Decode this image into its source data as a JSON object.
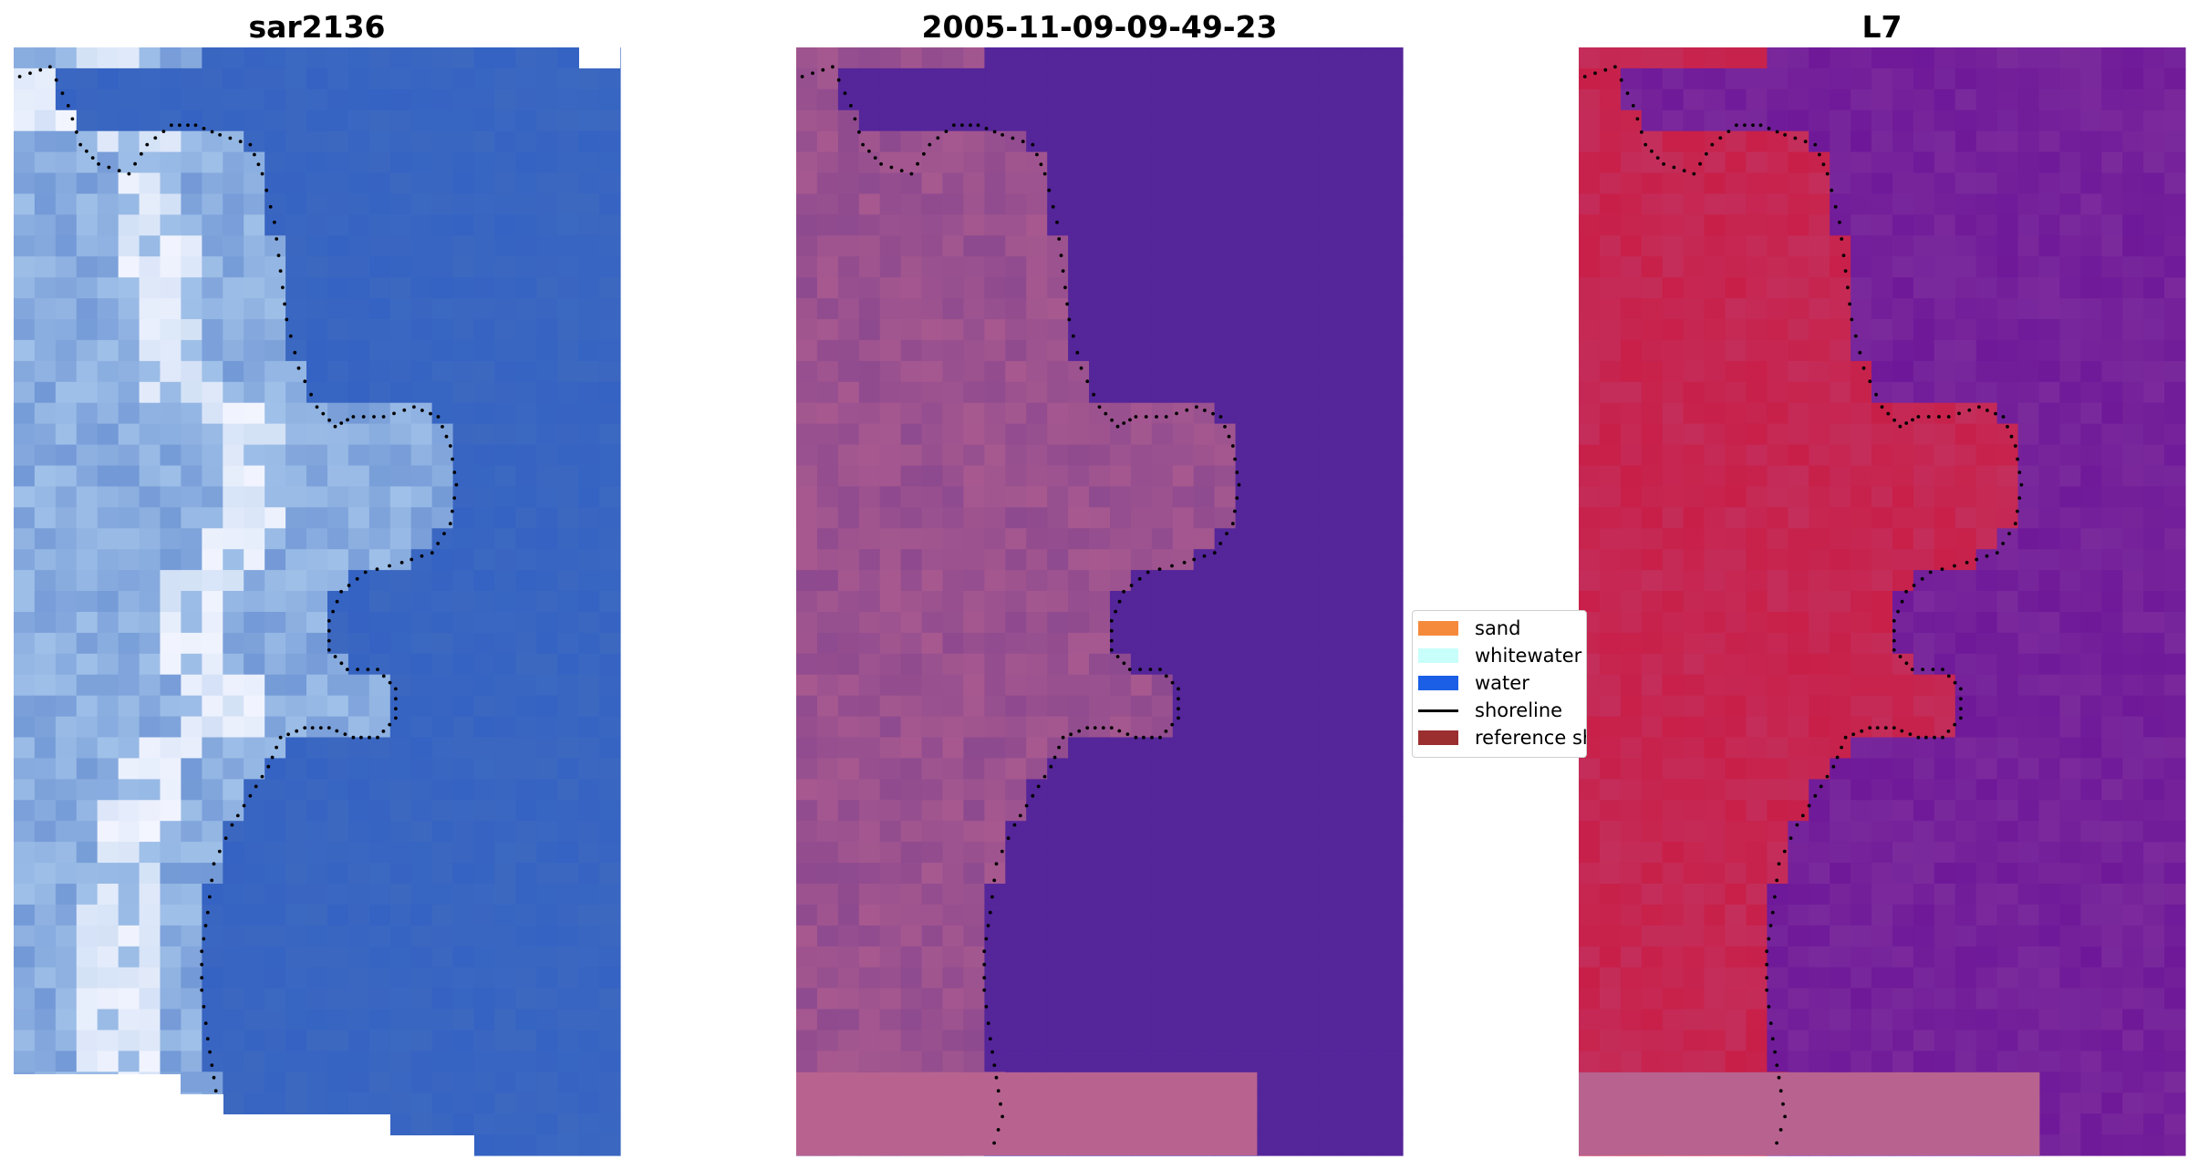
{
  "panels": [
    {
      "title": "sar2136",
      "name": "rgb-image-panel"
    },
    {
      "title": "2005-11-09-09-49-23",
      "name": "classified-image-panel"
    },
    {
      "title": "L7",
      "name": "index-image-panel"
    }
  ],
  "legend": {
    "items": [
      {
        "label": "sand",
        "color": "#f58a3c",
        "kind": "patch"
      },
      {
        "label": "whitewater",
        "color": "#c8fffa",
        "kind": "patch"
      },
      {
        "label": "water",
        "color": "#1a5fe6",
        "kind": "patch"
      },
      {
        "label": "shoreline",
        "color": "#000000",
        "kind": "line"
      },
      {
        "label": "reference shoreline",
        "color": "#9b2f2f",
        "kind": "patch"
      }
    ]
  },
  "colors": {
    "water_rgb": "#3c68c0",
    "land_rgb": "#9fc0e8",
    "surf_rgb": "#f4f6ff",
    "water_class": "#55259a",
    "land_class": "#8e4a8f",
    "sand_class": "#b8638f",
    "water_index": "#7b2a9c",
    "land_index": "#c81f48",
    "edge_index": "#b75a93"
  }
}
